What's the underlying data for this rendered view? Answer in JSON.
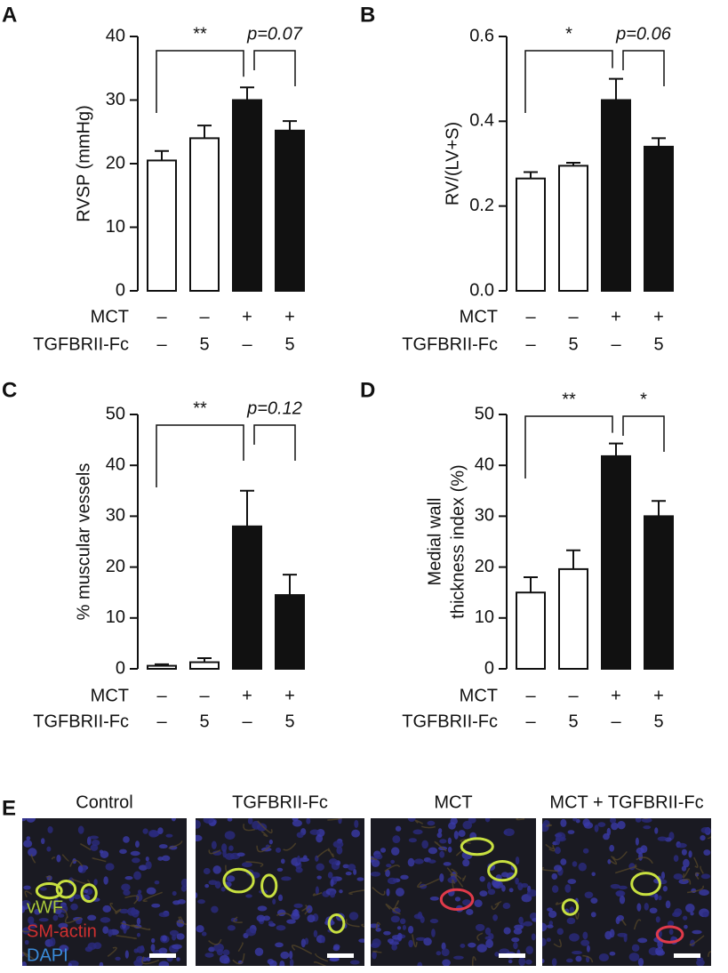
{
  "chart_data": [
    {
      "type": "bar",
      "panel": "A",
      "ylabel": "RVSP (mmHg)",
      "values": [
        20.5,
        24,
        30,
        25.2
      ],
      "errors": [
        1.5,
        2,
        2,
        1.5
      ],
      "colors": [
        "#ffffff",
        "#ffffff",
        "#111111",
        "#111111"
      ],
      "ylim": [
        0,
        40
      ],
      "yticks": [
        0,
        10,
        20,
        30,
        40
      ],
      "annotations": [
        "**",
        "p=0.07"
      ],
      "conditions": [
        {
          "name": "MCT",
          "labels": [
            "–",
            "–",
            "+",
            "+"
          ]
        },
        {
          "name": "TGFBRII-Fc",
          "labels": [
            "–",
            "5",
            "–",
            "5"
          ]
        }
      ]
    },
    {
      "type": "bar",
      "panel": "B",
      "ylabel": "RV/(LV+S)",
      "values": [
        0.265,
        0.295,
        0.45,
        0.34
      ],
      "errors": [
        0.015,
        0.007,
        0.05,
        0.02
      ],
      "colors": [
        "#ffffff",
        "#ffffff",
        "#111111",
        "#111111"
      ],
      "ylim": [
        0,
        0.6
      ],
      "yticks": [
        {
          "value": 0,
          "label": "0.0"
        },
        0.2,
        0.4,
        0.6
      ],
      "annotations": [
        "*",
        "p=0.06"
      ],
      "conditions": [
        {
          "name": "MCT",
          "labels": [
            "–",
            "–",
            "+",
            "+"
          ]
        },
        {
          "name": "TGFBRII-Fc",
          "labels": [
            "–",
            "5",
            "–",
            "5"
          ]
        }
      ]
    },
    {
      "type": "bar",
      "panel": "C",
      "ylabel": "% muscular vessels",
      "values": [
        0.6,
        1.3,
        28,
        14.5
      ],
      "errors": [
        0.3,
        0.8,
        7,
        4
      ],
      "colors": [
        "#ffffff",
        "#ffffff",
        "#111111",
        "#111111"
      ],
      "ylim": [
        0,
        50
      ],
      "yticks": [
        0,
        10,
        20,
        30,
        40,
        50
      ],
      "annotations": [
        "**",
        "p=0.12"
      ],
      "conditions": [
        {
          "name": "MCT",
          "labels": [
            "–",
            "–",
            "+",
            "+"
          ]
        },
        {
          "name": "TGFBRII-Fc",
          "labels": [
            "–",
            "5",
            "–",
            "5"
          ]
        }
      ]
    },
    {
      "type": "bar",
      "panel": "D",
      "ylabel": [
        "Medial wall",
        "thickness index (%)"
      ],
      "values": [
        15,
        19.6,
        41.8,
        30
      ],
      "errors": [
        3,
        3.7,
        2.5,
        3
      ],
      "colors": [
        "#ffffff",
        "#ffffff",
        "#111111",
        "#111111"
      ],
      "ylim": [
        0,
        50
      ],
      "yticks": [
        0,
        10,
        20,
        30,
        40,
        50
      ],
      "annotations": [
        "**",
        "*"
      ],
      "conditions": [
        {
          "name": "MCT",
          "labels": [
            "–",
            "–",
            "+",
            "+"
          ]
        },
        {
          "name": "TGFBRII-Fc",
          "labels": [
            "–",
            "5",
            "–",
            "5"
          ]
        }
      ]
    }
  ],
  "panel_e": {
    "label": "E",
    "titles": [
      "Control",
      "TGFBRII-Fc",
      "MCT",
      "MCT + TGFBRII-Fc"
    ],
    "stains": [
      "vWF",
      "SM-actin",
      "DAPI"
    ]
  }
}
